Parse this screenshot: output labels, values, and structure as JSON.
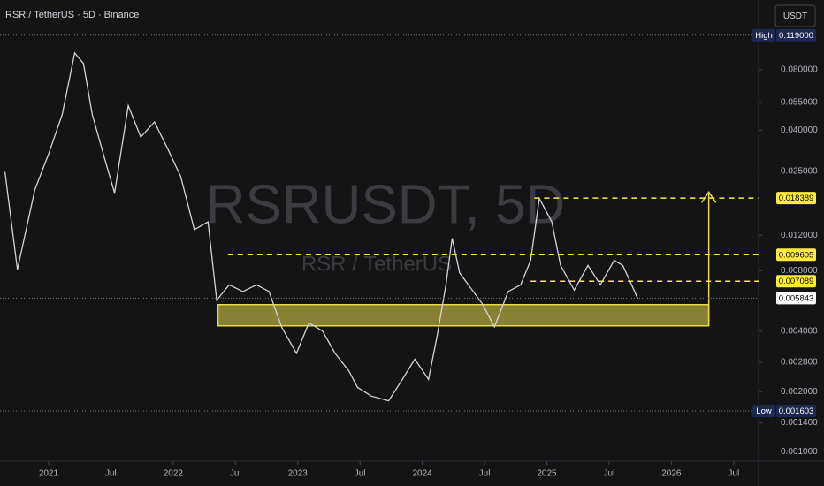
{
  "header": {
    "symbol_line": "RSR / TetherUS · 5D · Binance",
    "currency": "USDT"
  },
  "chart_data": {
    "type": "line",
    "log_scale": true,
    "color": "#d1d4dc",
    "watermark": "RSRUSDT, 5D",
    "watermark_sub": "RSR / TetherUS",
    "x": [
      2020.65,
      2020.75,
      2020.89,
      2021.0,
      2021.11,
      2021.21,
      2021.28,
      2021.35,
      2021.46,
      2021.53,
      2021.64,
      2021.74,
      2021.85,
      2021.96,
      2022.06,
      2022.17,
      2022.28,
      2022.35,
      2022.45,
      2022.56,
      2022.67,
      2022.77,
      2022.87,
      2022.99,
      2023.09,
      2023.2,
      2023.3,
      2023.41,
      2023.48,
      2023.59,
      2023.73,
      2023.84,
      2023.94,
      2024.05,
      2024.12,
      2024.19,
      2024.24,
      2024.3,
      2024.37,
      2024.48,
      2024.58,
      2024.69,
      2024.79,
      2024.87,
      2024.94,
      2025.04,
      2025.11,
      2025.22,
      2025.33,
      2025.43,
      2025.54,
      2025.61,
      2025.7,
      2025.73
    ],
    "values": [
      0.0248,
      0.0081,
      0.0202,
      0.0304,
      0.048,
      0.097,
      0.086,
      0.048,
      0.0274,
      0.0195,
      0.053,
      0.037,
      0.044,
      0.032,
      0.0236,
      0.0128,
      0.014,
      0.0057,
      0.0068,
      0.0063,
      0.0068,
      0.0063,
      0.0042,
      0.0031,
      0.0044,
      0.004,
      0.0031,
      0.00254,
      0.0021,
      0.0019,
      0.0018,
      0.0023,
      0.0029,
      0.0023,
      0.0038,
      0.0068,
      0.0116,
      0.0078,
      0.0068,
      0.0055,
      0.0042,
      0.0063,
      0.0068,
      0.009,
      0.0183,
      0.014,
      0.0085,
      0.0064,
      0.0085,
      0.0068,
      0.009,
      0.0085,
      0.0064,
      0.0058
    ],
    "xlim": [
      2020.61,
      2026.7
    ],
    "xticks": [
      2021,
      {
        "value": 2021.5,
        "label": "Jul"
      },
      2022,
      {
        "value": 2022.5,
        "label": "Jul"
      },
      2023,
      {
        "value": 2023.5,
        "label": "Jul"
      },
      2024,
      {
        "value": 2024.5,
        "label": "Jul"
      },
      2025,
      {
        "value": 2025.5,
        "label": "Jul"
      },
      2026,
      {
        "value": 2026.5,
        "label": "Jul"
      }
    ],
    "ylim": [
      0.0009,
      0.178
    ],
    "yticks": [
      {
        "value": 0.08,
        "label": "0.080000"
      },
      {
        "value": 0.055,
        "label": "0.055000"
      },
      {
        "value": 0.04,
        "label": "0.040000"
      },
      {
        "value": 0.025,
        "label": "0.025000"
      },
      {
        "value": 0.012,
        "label": "0.012000"
      },
      {
        "value": 0.008,
        "label": "0.008000"
      },
      {
        "value": 0.004,
        "label": "0.004000"
      },
      {
        "value": 0.0028,
        "label": "0.002800"
      },
      {
        "value": 0.002,
        "label": "0.002000"
      },
      {
        "value": 0.0014,
        "label": "0.001400"
      },
      {
        "value": 0.001,
        "label": "0.001000"
      }
    ],
    "price_labels": [
      {
        "value": 0.119,
        "label": "0.119000",
        "tag": "High",
        "color": "#1c2a52",
        "text_color": "#ffffff",
        "line": "dotted"
      },
      {
        "value": 0.018389,
        "label": "0.018389",
        "color": "#ffeb3b",
        "text_color": "#000000",
        "line": "dashed",
        "from": 2024.9
      },
      {
        "value": 0.009605,
        "label": "0.009605",
        "color": "#ffeb3b",
        "text_color": "#000000",
        "line": "dashed",
        "from": 2022.44
      },
      {
        "value": 0.007089,
        "label": "0.007089",
        "color": "#ffeb3b",
        "text_color": "#000000",
        "line": "dashed",
        "from": 2024.87
      },
      {
        "value": 0.005843,
        "label": "0.005843",
        "color": "#ffffff",
        "text_color": "#000000",
        "line": "dotted"
      },
      {
        "value": 0.001603,
        "label": "0.001603",
        "tag": "Low",
        "color": "#1c2a52",
        "text_color": "#ffffff",
        "line": "dotted"
      }
    ],
    "zone": {
      "low": 0.00425,
      "high": 0.00542,
      "from": 2022.36,
      "to": 2026.3,
      "color": "#e8d84a"
    },
    "arrow": {
      "x": 2026.3,
      "from": 0.00425,
      "to": 0.0197,
      "color": "#e8d84a"
    }
  }
}
